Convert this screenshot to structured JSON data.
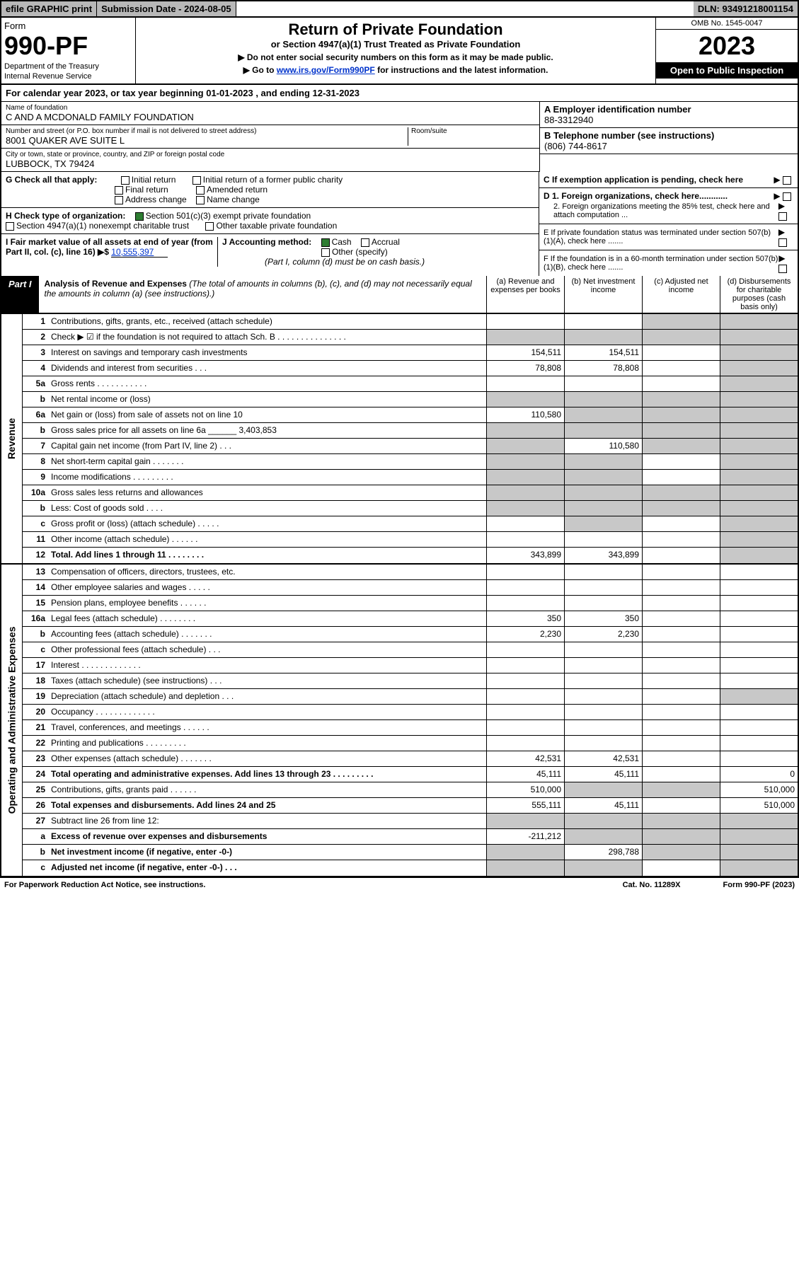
{
  "top": {
    "efile": "efile GRAPHIC print",
    "subdate_label": "Submission Date - 2024-08-05",
    "dln": "DLN: 93491218001154"
  },
  "header": {
    "form": "Form",
    "form_no": "990-PF",
    "dept": "Department of the Treasury",
    "irs": "Internal Revenue Service",
    "title": "Return of Private Foundation",
    "subtitle": "or Section 4947(a)(1) Trust Treated as Private Foundation",
    "note1": "▶ Do not enter social security numbers on this form as it may be made public.",
    "note2_pre": "▶ Go to ",
    "note2_link": "www.irs.gov/Form990PF",
    "note2_post": " for instructions and the latest information.",
    "omb": "OMB No. 1545-0047",
    "year": "2023",
    "open": "Open to Public Inspection"
  },
  "cal_year": "For calendar year 2023, or tax year beginning 01-01-2023            , and ending 12-31-2023",
  "entity": {
    "name_lbl": "Name of foundation",
    "name": "C AND A MCDONALD FAMILY FOUNDATION",
    "addr_lbl": "Number and street (or P.O. box number if mail is not delivered to street address)",
    "addr": "8001 QUAKER AVE SUITE L",
    "room_lbl": "Room/suite",
    "city_lbl": "City or town, state or province, country, and ZIP or foreign postal code",
    "city": "LUBBOCK, TX  79424",
    "a_lbl": "A Employer identification number",
    "a_val": "88-3312940",
    "b_lbl": "B Telephone number (see instructions)",
    "b_val": "(806) 744-8617",
    "c_lbl": "C If exemption application is pending, check here",
    "d1_lbl": "D 1. Foreign organizations, check here............",
    "d2_lbl": "2. Foreign organizations meeting the 85% test, check here and attach computation ...",
    "e_lbl": "E  If private foundation status was terminated under section 507(b)(1)(A), check here .......",
    "f_lbl": "F  If the foundation is in a 60-month termination under section 507(b)(1)(B), check here ......."
  },
  "g": {
    "label": "G Check all that apply:",
    "items": [
      "Initial return",
      "Initial return of a former public charity",
      "Final return",
      "Amended return",
      "Address change",
      "Name change"
    ]
  },
  "h": {
    "label": "H Check type of organization:",
    "opt1": "Section 501(c)(3) exempt private foundation",
    "opt2": "Section 4947(a)(1) nonexempt charitable trust",
    "opt3": "Other taxable private foundation"
  },
  "i": {
    "label": "I Fair market value of all assets at end of year (from Part II, col. (c), line 16) ▶$ ",
    "val": "10,555,397"
  },
  "j": {
    "label": "J Accounting method:",
    "cash": "Cash",
    "accrual": "Accrual",
    "other": "Other (specify)",
    "note": "(Part I, column (d) must be on cash basis.)"
  },
  "part1": {
    "label": "Part I",
    "title": "Analysis of Revenue and Expenses",
    "note": " (The total of amounts in columns (b), (c), and (d) may not necessarily equal the amounts in column (a) (see instructions).)",
    "col_a": "(a)   Revenue and expenses per books",
    "col_b": "(b)  Net investment income",
    "col_c": "(c)  Adjusted net income",
    "col_d": "(d)  Disbursements for charitable purposes (cash basis only)"
  },
  "sections": {
    "revenue": "Revenue",
    "expenses": "Operating and Administrative Expenses"
  },
  "rev_lines": [
    {
      "no": "1",
      "desc": "Contributions, gifts, grants, etc., received (attach schedule)",
      "a": "",
      "b": "",
      "c": "",
      "d": "",
      "sh_c": true,
      "sh_d": true
    },
    {
      "no": "2",
      "desc": "Check ▶ ☑ if the foundation is not required to attach Sch. B       .  .  .  .  .  .  .  .  .  .  .  .  .  .  .",
      "a": "",
      "b": "",
      "c": "",
      "d": "",
      "sh_a": true,
      "sh_b": true,
      "sh_c": true,
      "sh_d": true
    },
    {
      "no": "3",
      "desc": "Interest on savings and temporary cash investments",
      "a": "154,511",
      "b": "154,511",
      "c": "",
      "d": "",
      "sh_d": true
    },
    {
      "no": "4",
      "desc": "Dividends and interest from securities    .   .   .",
      "a": "78,808",
      "b": "78,808",
      "c": "",
      "d": "",
      "sh_d": true
    },
    {
      "no": "5a",
      "desc": "Gross rents       .   .   .   .   .   .   .   .   .   .   .",
      "a": "",
      "b": "",
      "c": "",
      "d": "",
      "sh_d": true
    },
    {
      "no": "b",
      "desc": "Net rental income or (loss)  ",
      "a": "",
      "b": "",
      "c": "",
      "d": "",
      "sh_a": true,
      "sh_b": true,
      "sh_c": true,
      "sh_d": true
    },
    {
      "no": "6a",
      "desc": "Net gain or (loss) from sale of assets not on line 10",
      "a": "110,580",
      "b": "",
      "c": "",
      "d": "",
      "sh_b": true,
      "sh_c": true,
      "sh_d": true
    },
    {
      "no": "b",
      "desc": "Gross sales price for all assets on line 6a ______ 3,403,853",
      "a": "",
      "b": "",
      "c": "",
      "d": "",
      "sh_a": true,
      "sh_b": true,
      "sh_c": true,
      "sh_d": true
    },
    {
      "no": "7",
      "desc": "Capital gain net income (from Part IV, line 2)   .   .   .",
      "a": "",
      "b": "110,580",
      "c": "",
      "d": "",
      "sh_a": true,
      "sh_c": true,
      "sh_d": true
    },
    {
      "no": "8",
      "desc": "Net short-term capital gain    .   .   .   .   .   .   .",
      "a": "",
      "b": "",
      "c": "",
      "d": "",
      "sh_a": true,
      "sh_b": true,
      "sh_d": true
    },
    {
      "no": "9",
      "desc": "Income modifications   .   .   .   .   .   .   .   .   .",
      "a": "",
      "b": "",
      "c": "",
      "d": "",
      "sh_a": true,
      "sh_b": true,
      "sh_d": true
    },
    {
      "no": "10a",
      "desc": "Gross sales less returns and allowances",
      "a": "",
      "b": "",
      "c": "",
      "d": "",
      "sh_a": true,
      "sh_b": true,
      "sh_c": true,
      "sh_d": true
    },
    {
      "no": "b",
      "desc": "Less: Cost of goods sold     .   .   .   .",
      "a": "",
      "b": "",
      "c": "",
      "d": "",
      "sh_a": true,
      "sh_b": true,
      "sh_c": true,
      "sh_d": true
    },
    {
      "no": "c",
      "desc": "Gross profit or (loss) (attach schedule)     .   .   .   .   .",
      "a": "",
      "b": "",
      "c": "",
      "d": "",
      "sh_b": true,
      "sh_d": true
    },
    {
      "no": "11",
      "desc": "Other income (attach schedule)    .   .   .   .   .   .",
      "a": "",
      "b": "",
      "c": "",
      "d": "",
      "sh_d": true
    },
    {
      "no": "12",
      "desc": "Total. Add lines 1 through 11   .   .   .   .   .   .   .   .",
      "a": "343,899",
      "b": "343,899",
      "c": "",
      "d": "",
      "bold": true,
      "sh_d": true
    }
  ],
  "exp_lines": [
    {
      "no": "13",
      "desc": "Compensation of officers, directors, trustees, etc.",
      "a": "",
      "b": "",
      "c": "",
      "d": ""
    },
    {
      "no": "14",
      "desc": "Other employee salaries and wages    .   .   .   .   .",
      "a": "",
      "b": "",
      "c": "",
      "d": ""
    },
    {
      "no": "15",
      "desc": "Pension plans, employee benefits   .   .   .   .   .   .",
      "a": "",
      "b": "",
      "c": "",
      "d": ""
    },
    {
      "no": "16a",
      "desc": "Legal fees (attach schedule)  .   .   .   .   .   .   .   .",
      "a": "350",
      "b": "350",
      "c": "",
      "d": ""
    },
    {
      "no": "b",
      "desc": "Accounting fees (attach schedule)  .   .   .   .   .   .   .",
      "a": "2,230",
      "b": "2,230",
      "c": "",
      "d": ""
    },
    {
      "no": "c",
      "desc": "Other professional fees (attach schedule)    .   .   .",
      "a": "",
      "b": "",
      "c": "",
      "d": ""
    },
    {
      "no": "17",
      "desc": "Interest  .   .   .   .   .   .   .   .   .   .   .   .   .",
      "a": "",
      "b": "",
      "c": "",
      "d": ""
    },
    {
      "no": "18",
      "desc": "Taxes (attach schedule) (see instructions)     .   .   .",
      "a": "",
      "b": "",
      "c": "",
      "d": ""
    },
    {
      "no": "19",
      "desc": "Depreciation (attach schedule) and depletion    .   .   .",
      "a": "",
      "b": "",
      "c": "",
      "d": "",
      "sh_d": true
    },
    {
      "no": "20",
      "desc": "Occupancy  .   .   .   .   .   .   .   .   .   .   .   .   .",
      "a": "",
      "b": "",
      "c": "",
      "d": ""
    },
    {
      "no": "21",
      "desc": "Travel, conferences, and meetings  .   .   .   .   .   .",
      "a": "",
      "b": "",
      "c": "",
      "d": ""
    },
    {
      "no": "22",
      "desc": "Printing and publications  .   .   .   .   .   .   .   .   .",
      "a": "",
      "b": "",
      "c": "",
      "d": ""
    },
    {
      "no": "23",
      "desc": "Other expenses (attach schedule)  .   .   .   .   .   .   .",
      "a": "42,531",
      "b": "42,531",
      "c": "",
      "d": ""
    },
    {
      "no": "24",
      "desc": "Total operating and administrative expenses. Add lines 13 through 23   .   .   .   .   .   .   .   .   .",
      "a": "45,111",
      "b": "45,111",
      "c": "",
      "d": "0",
      "bold": true
    },
    {
      "no": "25",
      "desc": "Contributions, gifts, grants paid     .   .   .   .   .   .",
      "a": "510,000",
      "b": "",
      "c": "",
      "d": "510,000",
      "sh_b": true,
      "sh_c": true
    },
    {
      "no": "26",
      "desc": "Total expenses and disbursements. Add lines 24 and 25",
      "a": "555,111",
      "b": "45,111",
      "c": "",
      "d": "510,000",
      "bold": true
    },
    {
      "no": "27",
      "desc": "Subtract line 26 from line 12:",
      "a": "",
      "b": "",
      "c": "",
      "d": "",
      "sh_a": true,
      "sh_b": true,
      "sh_c": true,
      "sh_d": true
    },
    {
      "no": "a",
      "desc": "Excess of revenue over expenses and disbursements",
      "a": "-211,212",
      "b": "",
      "c": "",
      "d": "",
      "bold": true,
      "sh_b": true,
      "sh_c": true,
      "sh_d": true
    },
    {
      "no": "b",
      "desc": "Net investment income (if negative, enter -0-)",
      "a": "",
      "b": "298,788",
      "c": "",
      "d": "",
      "bold": true,
      "sh_a": true,
      "sh_c": true,
      "sh_d": true
    },
    {
      "no": "c",
      "desc": "Adjusted net income (if negative, enter -0-)   .   .   .",
      "a": "",
      "b": "",
      "c": "",
      "d": "",
      "bold": true,
      "sh_a": true,
      "sh_b": true,
      "sh_d": true
    }
  ],
  "footer": {
    "left": "For Paperwork Reduction Act Notice, see instructions.",
    "mid": "Cat. No. 11289X",
    "right": "Form 990-PF (2023)"
  },
  "colors": {
    "grey": "#b8b8b8",
    "shade": "#c8c8c8",
    "link": "#0033cc",
    "green": "#2e7d32"
  }
}
